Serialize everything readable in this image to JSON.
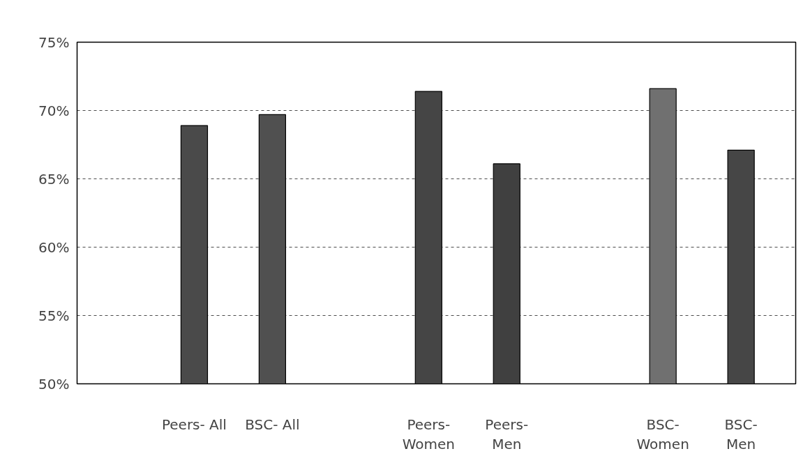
{
  "chart_data": {
    "type": "bar",
    "categories": [
      null,
      "Peers- All",
      "BSC- All",
      null,
      "Peers-\nWomen",
      "Peers-\nMen",
      null,
      "BSC-\nWomen",
      "BSC-\nMen"
    ],
    "values": [
      null,
      68.9,
      69.7,
      null,
      71.4,
      66.1,
      null,
      71.6,
      67.1
    ],
    "colors": [
      "#4a4a4a",
      "#4a4a4a",
      "#505050",
      "#4a4a4a",
      "#454545",
      "#404040",
      "#4a4a4a",
      "#707070",
      "#464646"
    ],
    "ylim": [
      50,
      75
    ],
    "yticks": [
      {
        "value": 50,
        "label": "50%"
      },
      {
        "value": 55,
        "label": "55%"
      },
      {
        "value": 60,
        "label": "60%"
      },
      {
        "value": 65,
        "label": "65%"
      },
      {
        "value": 70,
        "label": "70%"
      },
      {
        "value": 75,
        "label": "75%"
      }
    ],
    "grid": "y",
    "line_style": "dashed"
  }
}
